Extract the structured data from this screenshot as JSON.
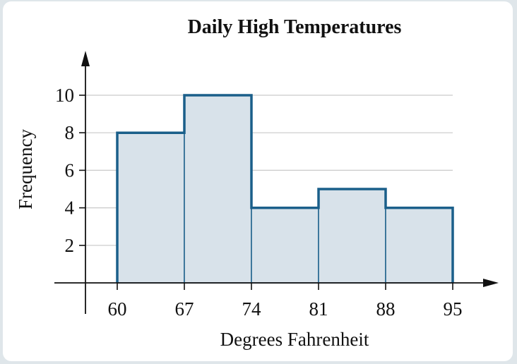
{
  "chart_data": {
    "type": "bar",
    "subtype": "histogram",
    "title": "Daily High Temperatures",
    "xlabel": "Degrees Fahrenheit",
    "ylabel": "Frequency",
    "bin_edges": [
      60,
      67,
      74,
      81,
      88,
      95
    ],
    "x_tick_labels": [
      "60",
      "67",
      "74",
      "81",
      "88",
      "95"
    ],
    "values": [
      8,
      10,
      4,
      5,
      4
    ],
    "y_ticks": [
      2,
      4,
      6,
      8,
      10
    ],
    "y_tick_labels": [
      "2",
      "4",
      "6",
      "8",
      "10"
    ],
    "xlim": [
      53,
      103
    ],
    "ylim": [
      0,
      12
    ],
    "grid": "horizontal",
    "colors": {
      "bar_fill": "#d8e2ea",
      "bar_stroke": "#1a5f8a",
      "grid": "#c9c9c9",
      "axis": "#111111"
    }
  }
}
